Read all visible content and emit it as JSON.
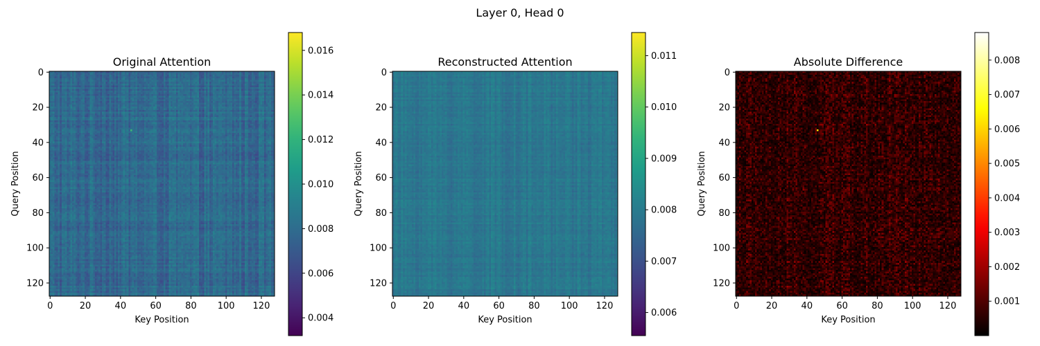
{
  "suptitle": "Layer 0, Head 0",
  "chart_data": [
    {
      "type": "heatmap",
      "title": "Original Attention",
      "xlabel": "Key Position",
      "ylabel": "Query Position",
      "matrix_size": [
        128,
        128
      ],
      "x_ticks": [
        0,
        20,
        40,
        60,
        80,
        100,
        120
      ],
      "y_ticks": [
        0,
        20,
        40,
        60,
        80,
        100,
        120
      ],
      "colormap": "viridis",
      "value_range": [
        0.0032,
        0.0168
      ],
      "colorbar_ticks": [
        0.004,
        0.006,
        0.008,
        0.01,
        0.012,
        0.014,
        0.016
      ],
      "colorbar_labels": [
        "0.004",
        "0.006",
        "0.008",
        "0.010",
        "0.012",
        "0.014",
        "0.016"
      ],
      "typical_value": 0.0078,
      "variation": 0.0009,
      "hotspot": {
        "x": 46,
        "y": 33,
        "value": 0.0125
      }
    },
    {
      "type": "heatmap",
      "title": "Reconstructed Attention",
      "xlabel": "Key Position",
      "ylabel": "Query Position",
      "matrix_size": [
        128,
        128
      ],
      "x_ticks": [
        0,
        20,
        40,
        60,
        80,
        100,
        120
      ],
      "y_ticks": [
        0,
        20,
        40,
        60,
        80,
        100,
        120
      ],
      "colormap": "viridis",
      "value_range": [
        0.00555,
        0.01145
      ],
      "colorbar_ticks": [
        0.006,
        0.007,
        0.008,
        0.009,
        0.01,
        0.011
      ],
      "colorbar_labels": [
        "0.006",
        "0.007",
        "0.008",
        "0.009",
        "0.010",
        "0.011"
      ],
      "typical_value": 0.0079,
      "variation": 0.00025
    },
    {
      "type": "heatmap",
      "title": "Absolute Difference",
      "xlabel": "Key Position",
      "ylabel": "Query Position",
      "matrix_size": [
        128,
        128
      ],
      "x_ticks": [
        0,
        20,
        40,
        60,
        80,
        100,
        120
      ],
      "y_ticks": [
        0,
        20,
        40,
        60,
        80,
        100,
        120
      ],
      "colormap": "hot",
      "value_range": [
        0.0,
        0.0088
      ],
      "colorbar_ticks": [
        0.001,
        0.002,
        0.003,
        0.004,
        0.005,
        0.006,
        0.007,
        0.008
      ],
      "colorbar_labels": [
        "0.001",
        "0.002",
        "0.003",
        "0.004",
        "0.005",
        "0.006",
        "0.007",
        "0.008"
      ],
      "typical_value": 0.0008,
      "variation": 0.0007,
      "hotspot": {
        "x": 46,
        "y": 33,
        "value": 0.0062
      }
    }
  ]
}
